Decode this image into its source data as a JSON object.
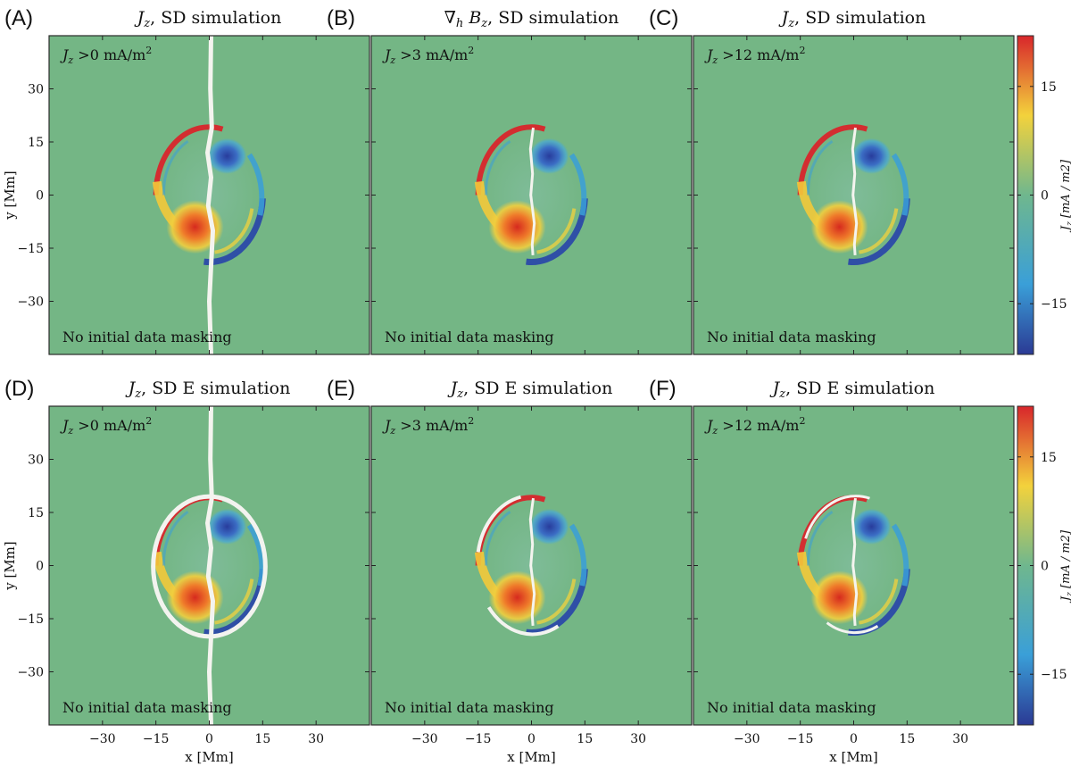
{
  "chart_data": [
    {
      "type": "heatmap",
      "panel": "(A)",
      "title": "J_z, SD simulation",
      "threshold_label": "J_z >0 mA/m2",
      "note": "No initial data masking",
      "ylabel": "y [Mm]",
      "xlabel": "",
      "show_divider_full": true,
      "ring_style": "none"
    },
    {
      "type": "heatmap",
      "panel": "(B)",
      "title": "∇_h B_z, SD simulation",
      "threshold_label": "J_z >3 mA/m2",
      "note": "No initial data masking",
      "ylabel": "",
      "xlabel": "",
      "show_divider_full": false,
      "ring_style": "none"
    },
    {
      "type": "heatmap",
      "panel": "(C)",
      "title": "J_z, SD simulation",
      "threshold_label": "J_z >12 mA/m2",
      "note": "No initial data masking",
      "ylabel": "",
      "xlabel": "",
      "show_divider_full": false,
      "ring_style": "none"
    },
    {
      "type": "heatmap",
      "panel": "(D)",
      "title": "J_z, SD E simulation",
      "threshold_label": "J_z >0 mA/m2",
      "note": "No initial data masking",
      "ylabel": "y [Mm]",
      "xlabel": "x [Mm]",
      "show_divider_full": true,
      "ring_style": "full"
    },
    {
      "type": "heatmap",
      "panel": "(E)",
      "title": "J_z, SD E simulation",
      "threshold_label": "J_z >3 mA/m2",
      "note": "No initial data masking",
      "ylabel": "",
      "xlabel": "x [Mm]",
      "show_divider_full": false,
      "ring_style": "partial"
    },
    {
      "type": "heatmap",
      "panel": "(F)",
      "title": "J_z, SD E simulation",
      "threshold_label": "J_z >12 mA/m2",
      "note": "No initial data masking",
      "ylabel": "",
      "xlabel": "x [Mm]",
      "show_divider_full": false,
      "ring_style": "thin"
    }
  ],
  "axes": {
    "xlim": [
      -45,
      45
    ],
    "ylim": [
      -45,
      45
    ],
    "x_ticks": [
      "−30",
      "−15",
      "0",
      "15",
      "30"
    ],
    "y_ticks": [
      "30",
      "15",
      "0",
      "−15",
      "−30"
    ]
  },
  "colorbar": {
    "label": "J_z [mA / m2]",
    "range": [
      -22,
      22
    ],
    "ticks": [
      "15",
      "0",
      "−15"
    ],
    "colormap": [
      "#2b3a94",
      "#3a9fd8",
      "#6fb78e",
      "#f3d23c",
      "#d8262b"
    ]
  },
  "background_color": "#74b685"
}
